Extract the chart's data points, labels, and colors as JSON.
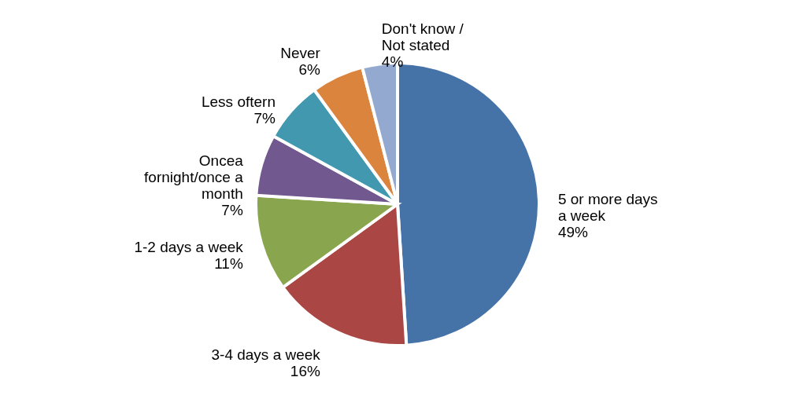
{
  "chart_data": {
    "type": "pie",
    "categories": [
      "5 or more days a week",
      "3-4 days a week",
      "1-2 days a week",
      "Oncea fornight/once a month",
      "Less oftern",
      "Never",
      "Don't know / Not stated"
    ],
    "values": [
      49,
      16,
      11,
      7,
      7,
      6,
      4
    ],
    "value_labels": [
      "49%",
      "16%",
      "11%",
      "7%",
      "7%",
      "6%",
      "4%"
    ],
    "colors": [
      "#4572a7",
      "#aa4643",
      "#89a54e",
      "#71588f",
      "#4198af",
      "#db843d",
      "#93a9cf"
    ],
    "legend": false
  }
}
